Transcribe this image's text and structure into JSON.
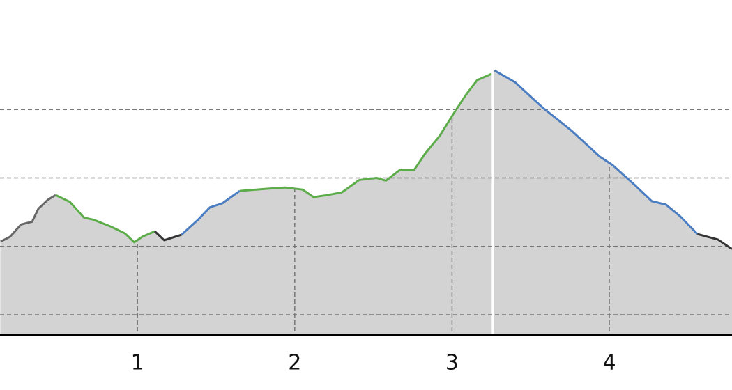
{
  "chart_data": {
    "type": "line",
    "xlim": [
      0.126,
      4.78
    ],
    "ylim": [
      0.705,
      5.6
    ],
    "xticks": [
      1,
      2,
      3,
      4
    ],
    "ygrid": [
      1,
      2,
      3,
      4
    ],
    "fill": "#d3d3d3",
    "grid": true,
    "series": [
      {
        "color": "#666666",
        "x": [
          0.13,
          0.19,
          0.26,
          0.33,
          0.37,
          0.43,
          0.48
        ],
        "values": [
          2.07,
          2.14,
          2.32,
          2.36,
          2.55,
          2.68,
          2.75
        ]
      },
      {
        "color": "#5cad4a",
        "x": [
          0.48,
          0.57,
          0.66,
          0.72,
          0.83,
          0.92,
          0.98,
          1.03,
          1.11
        ],
        "values": [
          2.75,
          2.65,
          2.42,
          2.39,
          2.29,
          2.19,
          2.06,
          2.14,
          2.22
        ]
      },
      {
        "color": "#333333",
        "x": [
          1.11,
          1.17,
          1.28
        ],
        "values": [
          2.22,
          2.09,
          2.17
        ]
      },
      {
        "color": "#4a7dc2",
        "x": [
          1.28,
          1.39,
          1.46,
          1.54,
          1.65
        ],
        "values": [
          2.17,
          2.4,
          2.57,
          2.63,
          2.81
        ]
      },
      {
        "color": "#5cad4a",
        "x": [
          1.65,
          1.81,
          1.94,
          2.05,
          2.12,
          2.21,
          2.3,
          2.41,
          2.52,
          2.58,
          2.67,
          2.76,
          2.83,
          2.92,
          3.01,
          3.09,
          3.16,
          3.25
        ],
        "values": [
          2.81,
          2.84,
          2.86,
          2.83,
          2.72,
          2.75,
          2.79,
          2.97,
          3.0,
          2.96,
          3.12,
          3.12,
          3.36,
          3.61,
          3.94,
          4.22,
          4.43,
          4.52
        ]
      },
      {
        "color": "#4a7dc2",
        "x": [
          3.27,
          3.4,
          3.58,
          3.76,
          3.94,
          4.02,
          4.16,
          4.27,
          4.36,
          4.45,
          4.56
        ],
        "values": [
          4.57,
          4.4,
          4.02,
          3.69,
          3.31,
          3.19,
          2.9,
          2.66,
          2.61,
          2.44,
          2.18
        ]
      },
      {
        "color": "#333333",
        "x": [
          4.56,
          4.69,
          4.78
        ],
        "values": [
          2.18,
          2.1,
          1.96
        ]
      }
    ]
  }
}
